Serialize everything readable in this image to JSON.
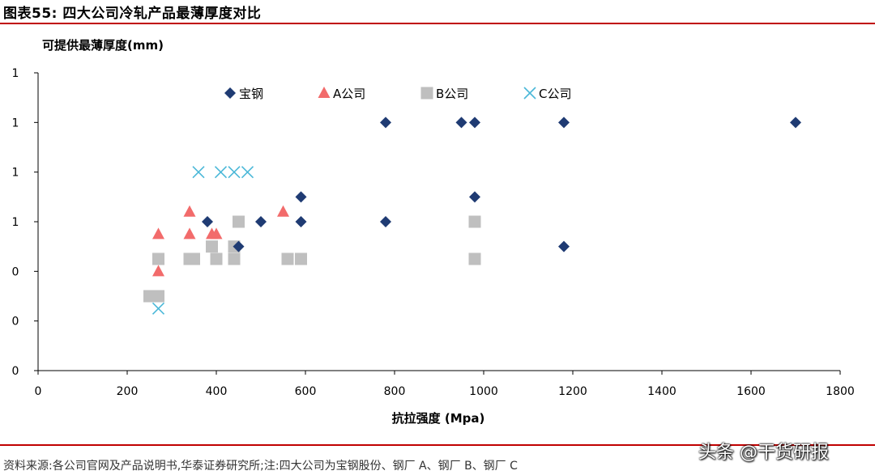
{
  "header": {
    "title": "图表55:  四大公司冷轧产品最薄厚度对比"
  },
  "footer": {
    "source": "资料来源:各公司官网及产品说明书,华泰证券研究所;注:四大公司为宝钢股份、钢厂 A、钢厂 B、钢厂 C"
  },
  "watermark": {
    "text": "头条 @干货研报"
  },
  "chart_data": {
    "type": "scatter",
    "title": "",
    "xlabel": "抗拉强度 (Mpa)",
    "ylabel": "可提供最薄厚度(mm)",
    "xlim": [
      0,
      1800
    ],
    "ylim": [
      0,
      1.2
    ],
    "x_ticks": [
      "0",
      "200",
      "400",
      "600",
      "800",
      "1000",
      "1200",
      "1400",
      "1600",
      "1800"
    ],
    "y_tick_values": [
      0,
      0.2,
      0.4,
      0.6,
      0.8,
      1.0,
      1.2
    ],
    "y_tick_labels": [
      "0",
      "0",
      "0",
      "1",
      "1",
      "1",
      "1"
    ],
    "grid": false,
    "legend_position": "top",
    "series": [
      {
        "name": "宝钢",
        "marker": "diamond",
        "color": "#1f3b73",
        "points": [
          [
            380,
            0.6
          ],
          [
            450,
            0.5
          ],
          [
            500,
            0.6
          ],
          [
            590,
            0.7
          ],
          [
            590,
            0.6
          ],
          [
            780,
            1.0
          ],
          [
            780,
            0.6
          ],
          [
            950,
            1.0
          ],
          [
            980,
            1.0
          ],
          [
            980,
            0.7
          ],
          [
            1180,
            1.0
          ],
          [
            1180,
            0.5
          ],
          [
            1700,
            1.0
          ]
        ]
      },
      {
        "name": "A公司",
        "marker": "triangle",
        "color": "#f26b6b",
        "points": [
          [
            270,
            0.55
          ],
          [
            270,
            0.4
          ],
          [
            340,
            0.64
          ],
          [
            340,
            0.55
          ],
          [
            390,
            0.55
          ],
          [
            400,
            0.55
          ],
          [
            550,
            0.64
          ]
        ]
      },
      {
        "name": "B公司",
        "marker": "square",
        "color": "#bfbfbf",
        "points": [
          [
            250,
            0.3
          ],
          [
            270,
            0.3
          ],
          [
            270,
            0.45
          ],
          [
            340,
            0.45
          ],
          [
            350,
            0.45
          ],
          [
            390,
            0.5
          ],
          [
            400,
            0.45
          ],
          [
            440,
            0.45
          ],
          [
            440,
            0.5
          ],
          [
            450,
            0.6
          ],
          [
            560,
            0.45
          ],
          [
            590,
            0.45
          ],
          [
            980,
            0.6
          ],
          [
            980,
            0.45
          ]
        ]
      },
      {
        "name": "C公司",
        "marker": "x",
        "color": "#4bb8d8",
        "points": [
          [
            270,
            0.25
          ],
          [
            360,
            0.8
          ],
          [
            410,
            0.8
          ],
          [
            440,
            0.8
          ],
          [
            470,
            0.8
          ]
        ]
      }
    ]
  }
}
